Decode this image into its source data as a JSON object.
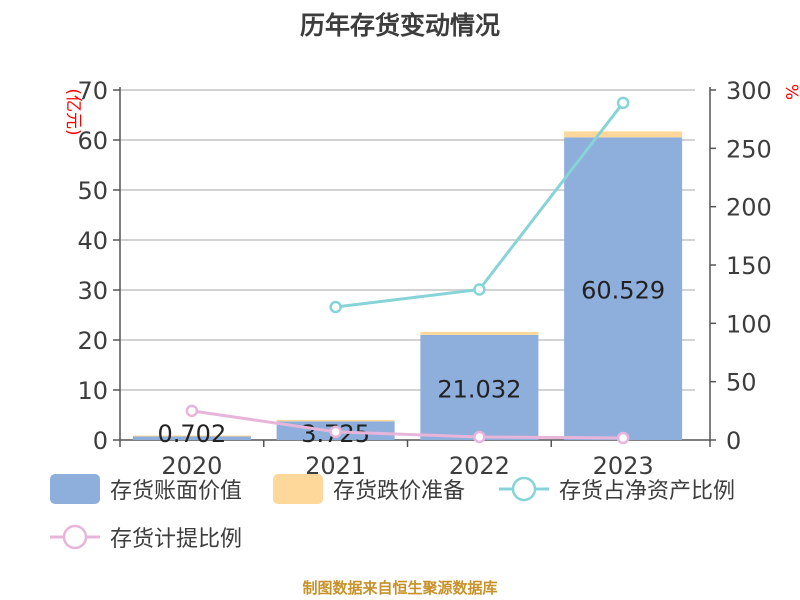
{
  "title": "历年存货变动情况",
  "footer": "制图数据来自恒生聚源数据库",
  "left_axis_unit": "(亿元)",
  "right_axis_unit": "%",
  "colors": {
    "book_value": "#8eaedb",
    "provision": "#fdd89a",
    "net_asset_ratio": "#86d4d7",
    "provision_ratio": "#e8b5da",
    "axis_text": "#3d3d3d",
    "unit_red": "#ff0000",
    "footer": "#c8922a"
  },
  "legend": [
    {
      "label": "存货账面价值",
      "type": "rect",
      "color": "#8eaedb"
    },
    {
      "label": "存货跌价准备",
      "type": "rect",
      "color": "#fdd89a"
    },
    {
      "label": "存货占净资产比例",
      "type": "line",
      "color": "#86d4d7"
    },
    {
      "label": "存货计提比例",
      "type": "line",
      "color": "#e8b5da"
    }
  ],
  "chart_data": {
    "type": "bar",
    "title": "历年存货变动情况",
    "categories": [
      "2020",
      "2021",
      "2022",
      "2023"
    ],
    "xlabel": "",
    "ylabel": "(亿元)",
    "ylabel_right": "%",
    "ylim": [
      0,
      70
    ],
    "ylim_right": [
      0,
      300
    ],
    "yticks": [
      0,
      10,
      20,
      30,
      40,
      50,
      60,
      70
    ],
    "yticks_right": [
      0,
      50,
      100,
      150,
      200,
      250,
      300
    ],
    "grid": true,
    "legend_position": "bottom",
    "series": [
      {
        "name": "存货账面价值",
        "type": "bar",
        "stack": "inv",
        "axis": "left",
        "values": [
          0.702,
          3.725,
          21.032,
          60.529
        ],
        "labels": [
          "0.702",
          "3.725",
          "21.032",
          "60.529"
        ]
      },
      {
        "name": "存货跌价准备",
        "type": "bar",
        "stack": "inv",
        "axis": "left",
        "values": [
          0.2,
          0.3,
          0.6,
          1.2
        ]
      },
      {
        "name": "存货占净资产比例",
        "type": "line",
        "axis": "right",
        "values": [
          null,
          114,
          129,
          289
        ]
      },
      {
        "name": "存货计提比例",
        "type": "line",
        "axis": "right",
        "values": [
          25,
          7,
          2.6,
          1.7
        ]
      }
    ]
  }
}
